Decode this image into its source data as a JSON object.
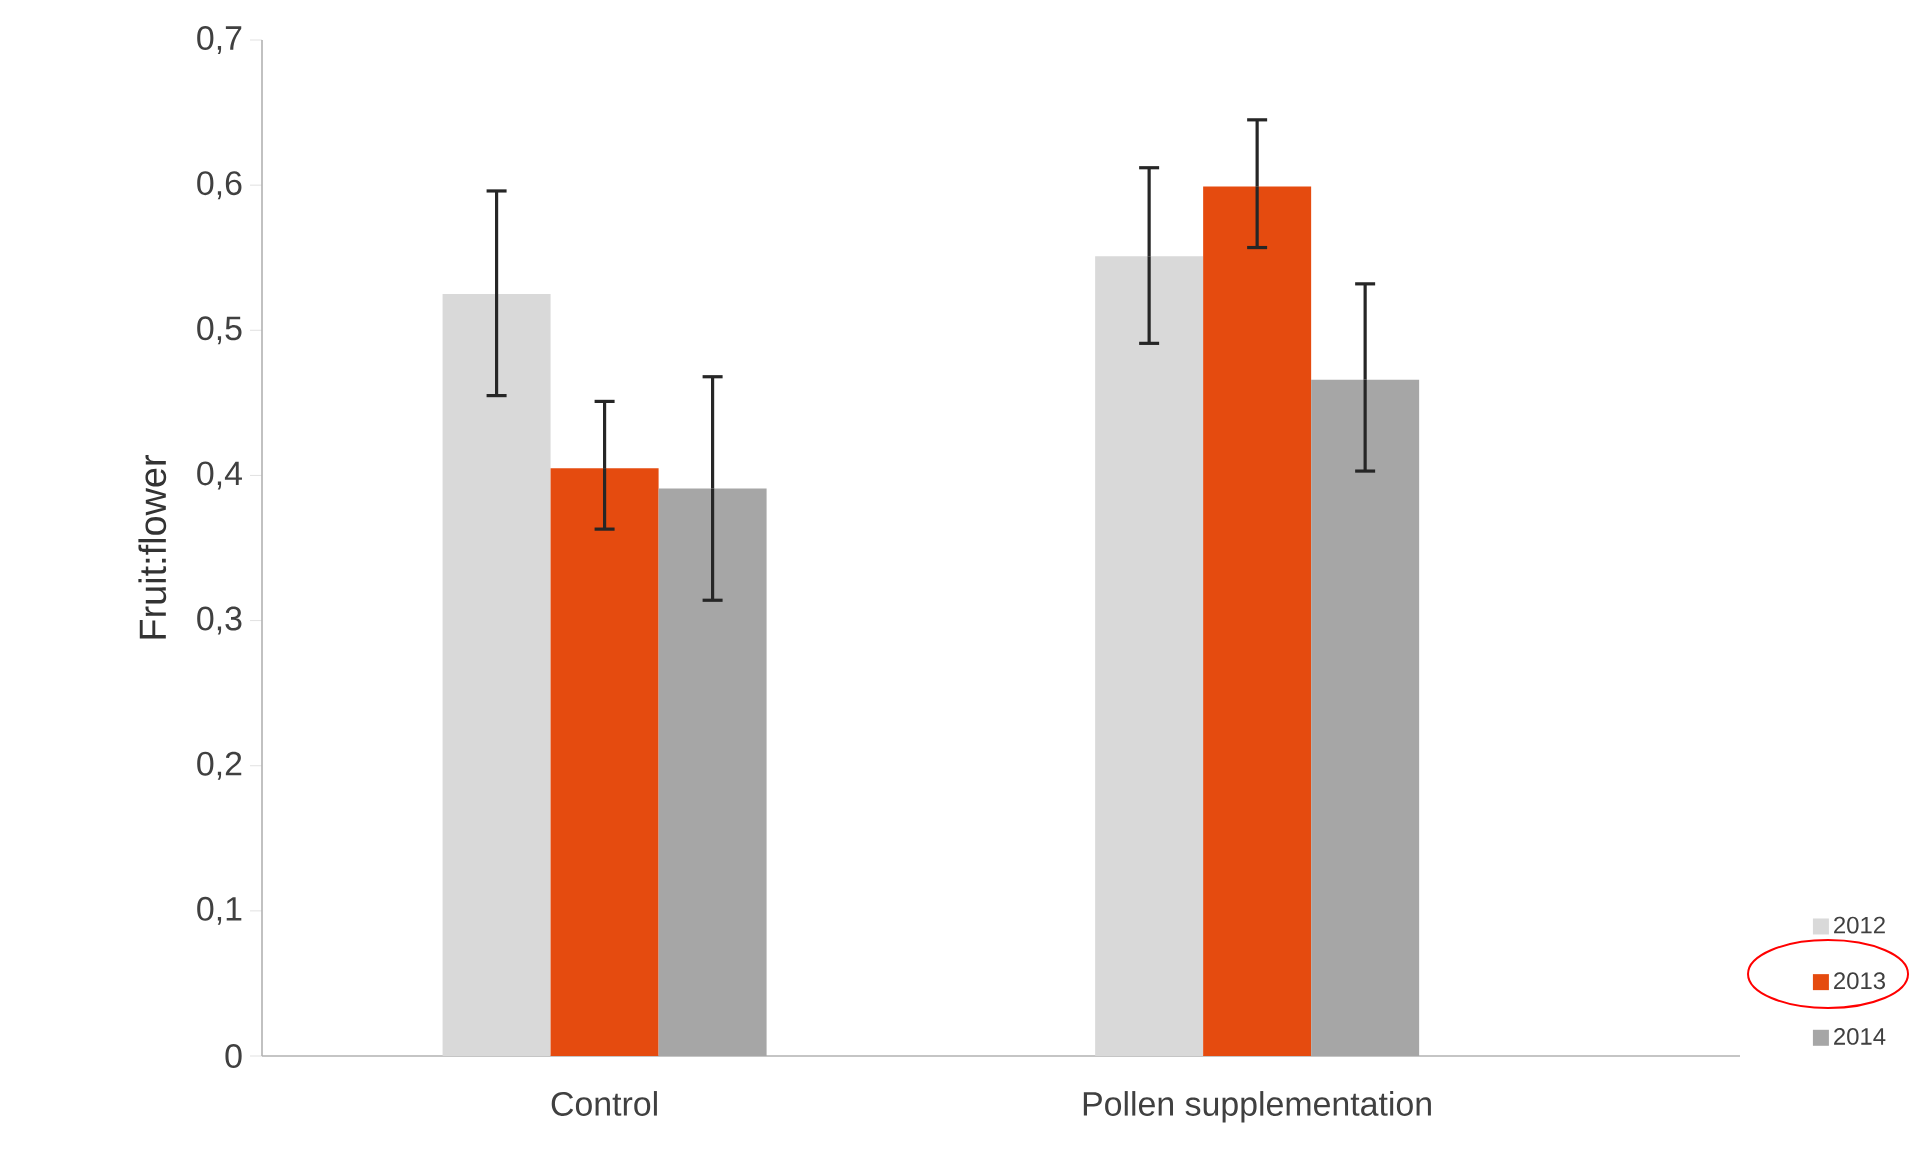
{
  "chart_data": {
    "type": "bar",
    "ylabel": "Fruit:flower",
    "categories": [
      "Control",
      "Pollen supplementation"
    ],
    "series": [
      {
        "name": "2012",
        "color": "#d9d9d9",
        "values": [
          0.525,
          0.551
        ],
        "errors": [
          [
            0.455,
            0.596
          ],
          [
            0.491,
            0.612
          ]
        ]
      },
      {
        "name": "2013",
        "color": "#e54b0f",
        "values": [
          0.405,
          0.599
        ],
        "errors": [
          [
            0.363,
            0.451
          ],
          [
            0.557,
            0.645
          ]
        ]
      },
      {
        "name": "2014",
        "color": "#a6a6a6",
        "values": [
          0.391,
          0.466
        ],
        "errors": [
          [
            0.314,
            0.468
          ],
          [
            0.403,
            0.532
          ]
        ]
      }
    ],
    "ylim": [
      0,
      0.7
    ],
    "yticks": [
      {
        "value": 0,
        "label": "0"
      },
      {
        "value": 0.1,
        "label": "0,1"
      },
      {
        "value": 0.2,
        "label": "0,2"
      },
      {
        "value": 0.3,
        "label": "0,3"
      },
      {
        "value": 0.4,
        "label": "0,4"
      },
      {
        "value": 0.5,
        "label": "0,5"
      },
      {
        "value": 0.6,
        "label": "0,6"
      },
      {
        "value": 0.7,
        "label": "0,7"
      }
    ],
    "grid": false,
    "legend": "bottom right"
  }
}
